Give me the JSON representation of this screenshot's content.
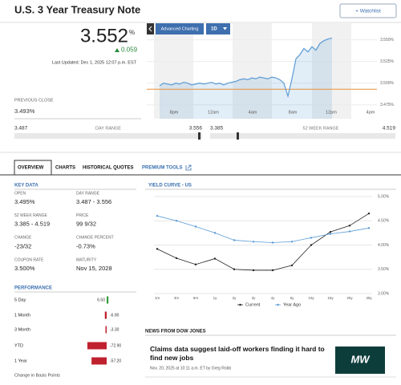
{
  "header": {
    "title": "U.S. 3 Year Treasury Note",
    "watchlist": "+ Watchlist"
  },
  "quote": {
    "price": "3.552",
    "unit": "%",
    "change": "0.059",
    "updated": "Last Updated: Dec 1, 2025 12:07 p.m. EST",
    "previous_close_label": "PREVIOUS CLOSE",
    "previous_close": "3.493%",
    "day_range": {
      "label": "DAY RANGE",
      "low": "3.487",
      "high": "3.556"
    },
    "week52_range": {
      "label": "52 WEEK RANGE",
      "low": "3.385",
      "high": "4.519"
    }
  },
  "intraday_chart": {
    "type": "line",
    "buttons": [
      "Advanced Charting",
      "1D"
    ],
    "x_labels": [
      "8pm",
      "12am",
      "4am",
      "8am",
      "12pm",
      "4pm"
    ],
    "ylim": [
      3.459,
      3.57
    ],
    "yticks": [
      {
        "value": 3.55,
        "label": "3.550%"
      },
      {
        "value": 3.525,
        "label": "3.525%"
      },
      {
        "value": 3.5,
        "label": "3.500%"
      },
      {
        "value": 3.475,
        "label": "3.475%"
      }
    ],
    "reference": 3.493,
    "color": "#5b9bd5",
    "reference_color": "#e69138",
    "values": [
      3.497,
      3.5,
      3.499,
      3.498,
      3.5,
      3.499,
      3.501,
      3.5,
      3.498,
      3.499,
      3.5,
      3.499,
      3.5,
      3.501,
      3.499,
      3.5,
      3.498,
      3.5,
      3.501,
      3.502,
      3.504,
      3.505,
      3.504,
      3.506,
      3.505,
      3.507,
      3.506,
      3.505,
      3.507,
      3.506,
      3.504,
      3.5,
      3.485,
      3.505,
      3.528,
      3.533,
      3.54,
      3.536,
      3.542,
      3.538,
      3.546,
      3.549,
      3.551,
      3.552
    ]
  },
  "tabs": [
    "OVERVIEW",
    "CHARTS",
    "HISTORICAL QUOTES",
    "PREMIUM TOOLS"
  ],
  "key_data": {
    "title": "KEY DATA",
    "items": [
      {
        "label": "OPEN",
        "value": "3.495%"
      },
      {
        "label": "DAY RANGE",
        "value": "3.487 - 3.556"
      },
      {
        "label": "52 WEEK RANGE",
        "value": "3.385 - 4.519"
      },
      {
        "label": "PRICE",
        "value": "99 9/32"
      },
      {
        "label": "CHANGE",
        "value": "-23/32"
      },
      {
        "label": "CHANGE PERCENT",
        "value": "-0.73%"
      },
      {
        "label": "COUPON RATE",
        "value": "3.500%"
      },
      {
        "label": "MATURITY",
        "value": "Nov 15, 2028"
      }
    ]
  },
  "performance": {
    "type": "bar",
    "title": "PERFORMANCE",
    "categories": [
      "5 Day",
      "1 Month",
      "3 Month",
      "YTD",
      "1 Year"
    ],
    "values": [
      6.5,
      -6.9,
      -3.3,
      -72.9,
      -57.2
    ],
    "value_labels": [
      "6.50",
      "-6.90",
      "-3.30",
      "-72.90",
      "-57.20"
    ],
    "positive_color": "#2e9c3a",
    "negative_color": "#c0212f",
    "note": "Change in Basis Points"
  },
  "yield_curve": {
    "type": "line",
    "title": "YIELD CURVE - US",
    "categories": [
      "1m",
      "3m",
      "6m",
      "1y",
      "2y",
      "3y",
      "4y",
      "5y",
      "10y",
      "15y",
      "20y",
      "30y"
    ],
    "ylim": [
      3.0,
      5.0
    ],
    "yticks": [
      {
        "value": 5.0,
        "label": "5.00%"
      },
      {
        "value": 4.5,
        "label": "4.50%"
      },
      {
        "value": 4.0,
        "label": "4.00%"
      },
      {
        "value": 3.5,
        "label": "3.50%"
      },
      {
        "value": 3.0,
        "label": "3.00%"
      }
    ],
    "series": [
      {
        "name": "Current",
        "color": "#222222",
        "values": [
          3.92,
          3.73,
          3.6,
          3.72,
          3.5,
          3.48,
          3.48,
          3.58,
          4.0,
          4.27,
          4.4,
          4.65
        ]
      },
      {
        "name": "Year Ago",
        "color": "#5b9bd5",
        "values": [
          4.6,
          4.5,
          4.38,
          4.25,
          4.1,
          4.07,
          4.05,
          4.07,
          4.15,
          4.23,
          4.28,
          4.35
        ]
      }
    ]
  },
  "news": {
    "title": "NEWS FROM DOW JONES",
    "articles": [
      {
        "headline": "Claims data suggest laid-off workers finding it hard to find new jobs",
        "byline": "Nov. 20, 2025 at 10:11 a.m. ET by Greg Robb",
        "thumb": "MW"
      }
    ]
  }
}
